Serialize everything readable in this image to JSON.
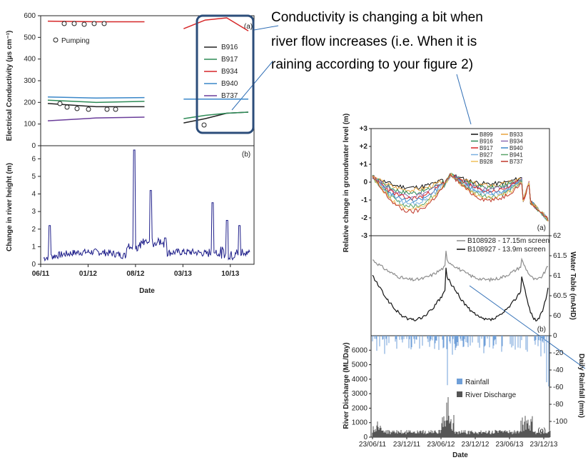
{
  "annotation": {
    "lines": [
      "Conductivity is changing a bit when",
      "river flow increases (i.e. When it is",
      "raining according to your figure  2)"
    ]
  },
  "chart_data": [
    {
      "type": "line",
      "panel": "(a)",
      "ylabel": "Electrical Conductivity (μs cm⁻¹)",
      "ylim": [
        0,
        600
      ],
      "yticks": [
        "0",
        "100",
        "200",
        "300",
        "400",
        "500",
        "600"
      ],
      "marker_legend": "Pumping",
      "series": [
        {
          "name": "B916",
          "color": "#222222",
          "gap": [
            0.52,
            0.67
          ],
          "y_left": [
            195,
            180,
            180
          ],
          "y_right": [
            105,
            125,
            150,
            155
          ]
        },
        {
          "name": "B917",
          "color": "#2e8b57",
          "gap": [
            0.52,
            0.67
          ],
          "y_left": [
            210,
            200,
            205
          ],
          "y_right": [
            125,
            140,
            150,
            155
          ]
        },
        {
          "name": "B934",
          "color": "#d62728",
          "gap": [
            0.52,
            0.67
          ],
          "y_left": [
            575,
            572,
            572
          ],
          "y_right": [
            540,
            580,
            590,
            530
          ]
        },
        {
          "name": "B940",
          "color": "#3a87c9",
          "gap": [
            0.52,
            0.67
          ],
          "y_left": [
            225,
            220,
            222
          ],
          "y_right": [
            215,
            215,
            215,
            215
          ]
        },
        {
          "name": "B737",
          "color": "#6a3d9a",
          "gap": [
            0.52,
            0.67
          ],
          "y_left": [
            115,
            128,
            132
          ],
          "y_right": []
        }
      ]
    },
    {
      "type": "line",
      "panel": "(b)",
      "xlabel": "Date",
      "ylabel": "Change in river height (m)",
      "ylim": [
        0,
        6.5
      ],
      "yticks": [
        "0",
        "1",
        "2",
        "3",
        "4",
        "5",
        "6"
      ],
      "xticks": [
        "06/11",
        "01/12",
        "08/12",
        "03/13",
        "10/13"
      ],
      "series": [
        {
          "name": "",
          "color": "#1f1f8a",
          "peaks": [
            [
              0.03,
              2.2
            ],
            [
              0.44,
              6.5
            ],
            [
              0.52,
              4.2
            ],
            [
              0.59,
              1.5
            ],
            [
              0.82,
              3.5
            ],
            [
              0.89,
              2.5
            ],
            [
              0.95,
              2.2
            ]
          ]
        }
      ]
    },
    {
      "type": "line",
      "panel": "(a)",
      "ylabel": "Relative change in groundwater level (m)",
      "ylim": [
        -3,
        3
      ],
      "yticks": [
        "+3",
        "+2",
        "+1",
        "0",
        "-1",
        "-2",
        "-3"
      ],
      "legend": [
        "B899",
        "B933",
        "B916",
        "B934",
        "B917",
        "B940",
        "B927",
        "B941",
        "B928",
        "B737"
      ]
    },
    {
      "type": "line",
      "panel": "(b)",
      "ylabel": "Water Table (mAHD)",
      "ylim": [
        59.5,
        62
      ],
      "yticks": [
        "62",
        "61.5",
        "61",
        "60.5",
        "60"
      ],
      "series": [
        {
          "name": "B108928 - 17.15m screen",
          "color": "#8c8c8c"
        },
        {
          "name": "B108927 - 13.9m screen",
          "color": "#111111"
        }
      ]
    },
    {
      "type": "bar",
      "panel": "(c)",
      "xlabel": "Date",
      "ylabel": "River Discharge (ML/Day)",
      "ylabel_right": "Daily Rainfall (mm)",
      "ylim": [
        0,
        7000
      ],
      "yticks": [
        "6000",
        "5000",
        "4000",
        "3000",
        "2000",
        "1000",
        "0"
      ],
      "yticks_right": [
        "0",
        "-20",
        "-40",
        "-60",
        "-80",
        "-100"
      ],
      "xticks": [
        "23/06/11",
        "23/12/11",
        "23/06/12",
        "23/12/12",
        "23/06/13",
        "23/12/13"
      ],
      "series": [
        {
          "name": "Rainfall",
          "color": "#6f9fd8"
        },
        {
          "name": "River Discharge",
          "color": "#555555"
        }
      ]
    }
  ]
}
